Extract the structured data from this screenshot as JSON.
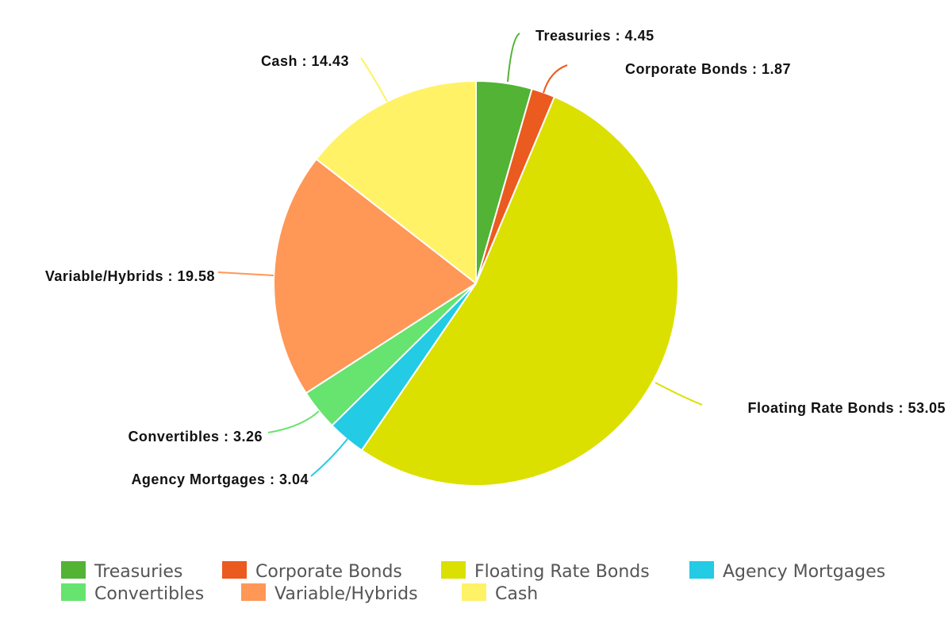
{
  "chart_data": {
    "type": "pie",
    "title": "",
    "slices": [
      {
        "label": "Treasuries",
        "value": 4.45,
        "color": "#52b335"
      },
      {
        "label": "Corporate Bonds",
        "value": 1.87,
        "color": "#eb5a1e"
      },
      {
        "label": "Floating Rate Bonds",
        "value": 53.05,
        "color": "#dce000"
      },
      {
        "label": "Agency Mortgages",
        "value": 3.04,
        "color": "#23cbe4"
      },
      {
        "label": "Convertibles",
        "value": 3.26,
        "color": "#67e36f"
      },
      {
        "label": "Variable/Hybrids",
        "value": 19.58,
        "color": "#ff9757"
      },
      {
        "label": "Cash",
        "value": 14.43,
        "color": "#fff266"
      }
    ],
    "label_separator": " : ",
    "start_angle": "12 o'clock",
    "direction": "clockwise",
    "legend_position": "bottom"
  }
}
